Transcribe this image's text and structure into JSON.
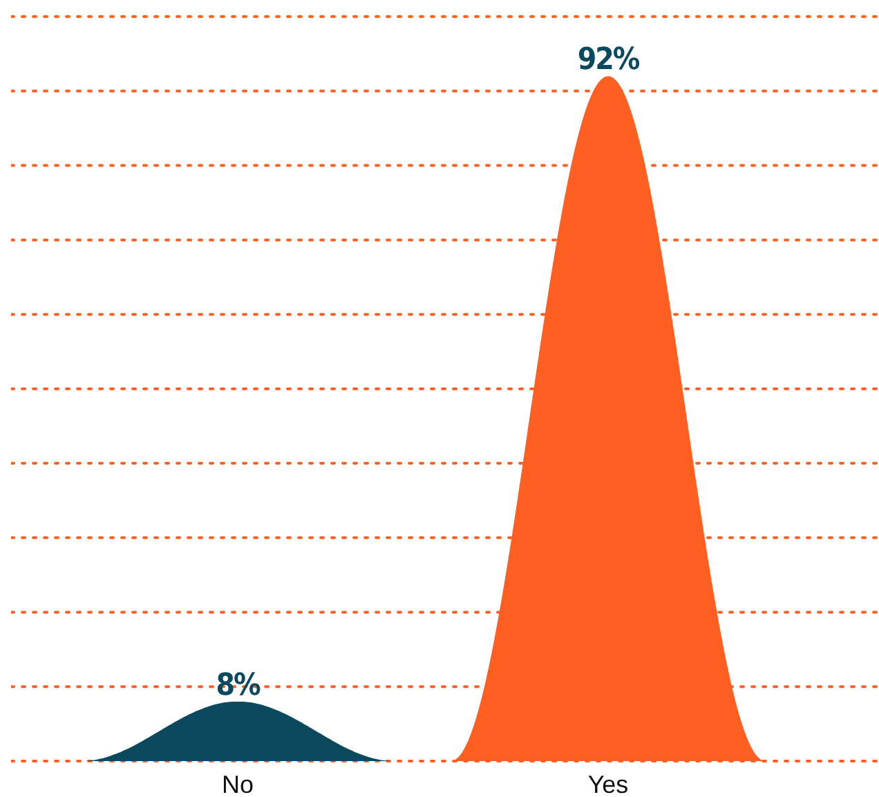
{
  "chart_data": {
    "type": "bar",
    "categories": [
      "No",
      "Yes"
    ],
    "values": [
      8,
      92
    ],
    "colors": [
      "#0b4a5e",
      "#ff6022"
    ],
    "ylim": [
      0,
      100
    ],
    "yticks": [
      {
        "value": 0,
        "label": null
      },
      {
        "value": 10,
        "label": null
      },
      {
        "value": 20,
        "label": null
      },
      {
        "value": 30,
        "label": null
      },
      {
        "value": 40,
        "label": null
      },
      {
        "value": 50,
        "label": null
      },
      {
        "value": 60,
        "label": null
      },
      {
        "value": 70,
        "label": null
      },
      {
        "value": 80,
        "label": null
      },
      {
        "value": 90,
        "label": null
      },
      {
        "value": 100,
        "label": null
      }
    ],
    "tick_labels": "x",
    "grid": "y",
    "data_labels": true,
    "value_labels": [
      "8%",
      "92%"
    ]
  }
}
